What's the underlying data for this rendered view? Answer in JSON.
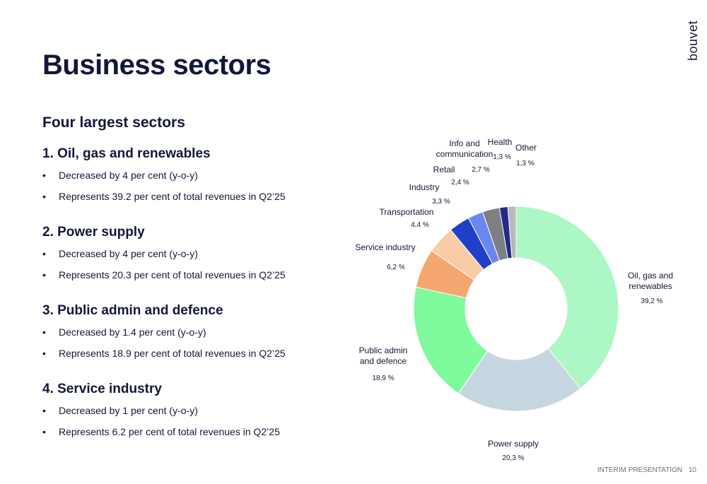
{
  "slide": {
    "title": "Business sectors",
    "logo_text": "bouvet",
    "subtitle": "Four largest sectors",
    "footer_label": "INTERIM PRESENTATION",
    "page_number": "10"
  },
  "sectors": [
    {
      "heading": "1. Oil, gas and renewables",
      "bullets": [
        "Decreased by 4 per cent (y-o-y)",
        "Represents 39.2 per cent of total revenues in Q2’25"
      ]
    },
    {
      "heading": "2. Power supply",
      "bullets": [
        "Decreased by 4 per cent (y-o-y)",
        "Represents 20.3 per cent of total revenues in Q2’25"
      ]
    },
    {
      "heading": "3. Public admin and defence",
      "bullets": [
        "Decreased by 1.4 per cent (y-o-y)",
        "Represents 18.9 per cent of total revenues in Q2’25"
      ]
    },
    {
      "heading": "4. Service industry",
      "bullets": [
        "Decreased by 1 per cent (y-o-y)",
        "Represents 6.2 per cent of total revenues in Q2’25"
      ]
    }
  ],
  "bullet_char": "•",
  "chart_data": {
    "type": "pie",
    "variant": "donut",
    "slices": [
      {
        "label": [
          "Oil, gas and",
          "renewables"
        ],
        "value": 39.2,
        "value_label": "39,2 %",
        "color": "#adf7c4"
      },
      {
        "label": [
          "Power supply"
        ],
        "value": 20.3,
        "value_label": "20,3 %",
        "color": "#c5d6e1"
      },
      {
        "label": [
          "Public admin",
          "and defence"
        ],
        "value": 18.9,
        "value_label": "18,9 %",
        "color": "#7ffa9c"
      },
      {
        "label": [
          "Service industry"
        ],
        "value": 6.2,
        "value_label": "6,2 %",
        "color": "#f6a76f"
      },
      {
        "label": [
          "Transportation"
        ],
        "value": 4.4,
        "value_label": "4,4 %",
        "color": "#f9cca7"
      },
      {
        "label": [
          "Industry"
        ],
        "value": 3.3,
        "value_label": "3,3 %",
        "color": "#1f3fc8"
      },
      {
        "label": [
          "Retail"
        ],
        "value": 2.4,
        "value_label": "2,4 %",
        "color": "#6a87f0"
      },
      {
        "label": [
          "Info and",
          "communication"
        ],
        "value": 2.7,
        "value_label": "2,7 %",
        "color": "#7d7f82"
      },
      {
        "label": [
          "Health"
        ],
        "value": 1.3,
        "value_label": "1,3 %",
        "color": "#242a86"
      },
      {
        "label": [
          "Other"
        ],
        "value": 1.3,
        "value_label": "1,3 %",
        "color": "#b6b8bd"
      }
    ]
  }
}
